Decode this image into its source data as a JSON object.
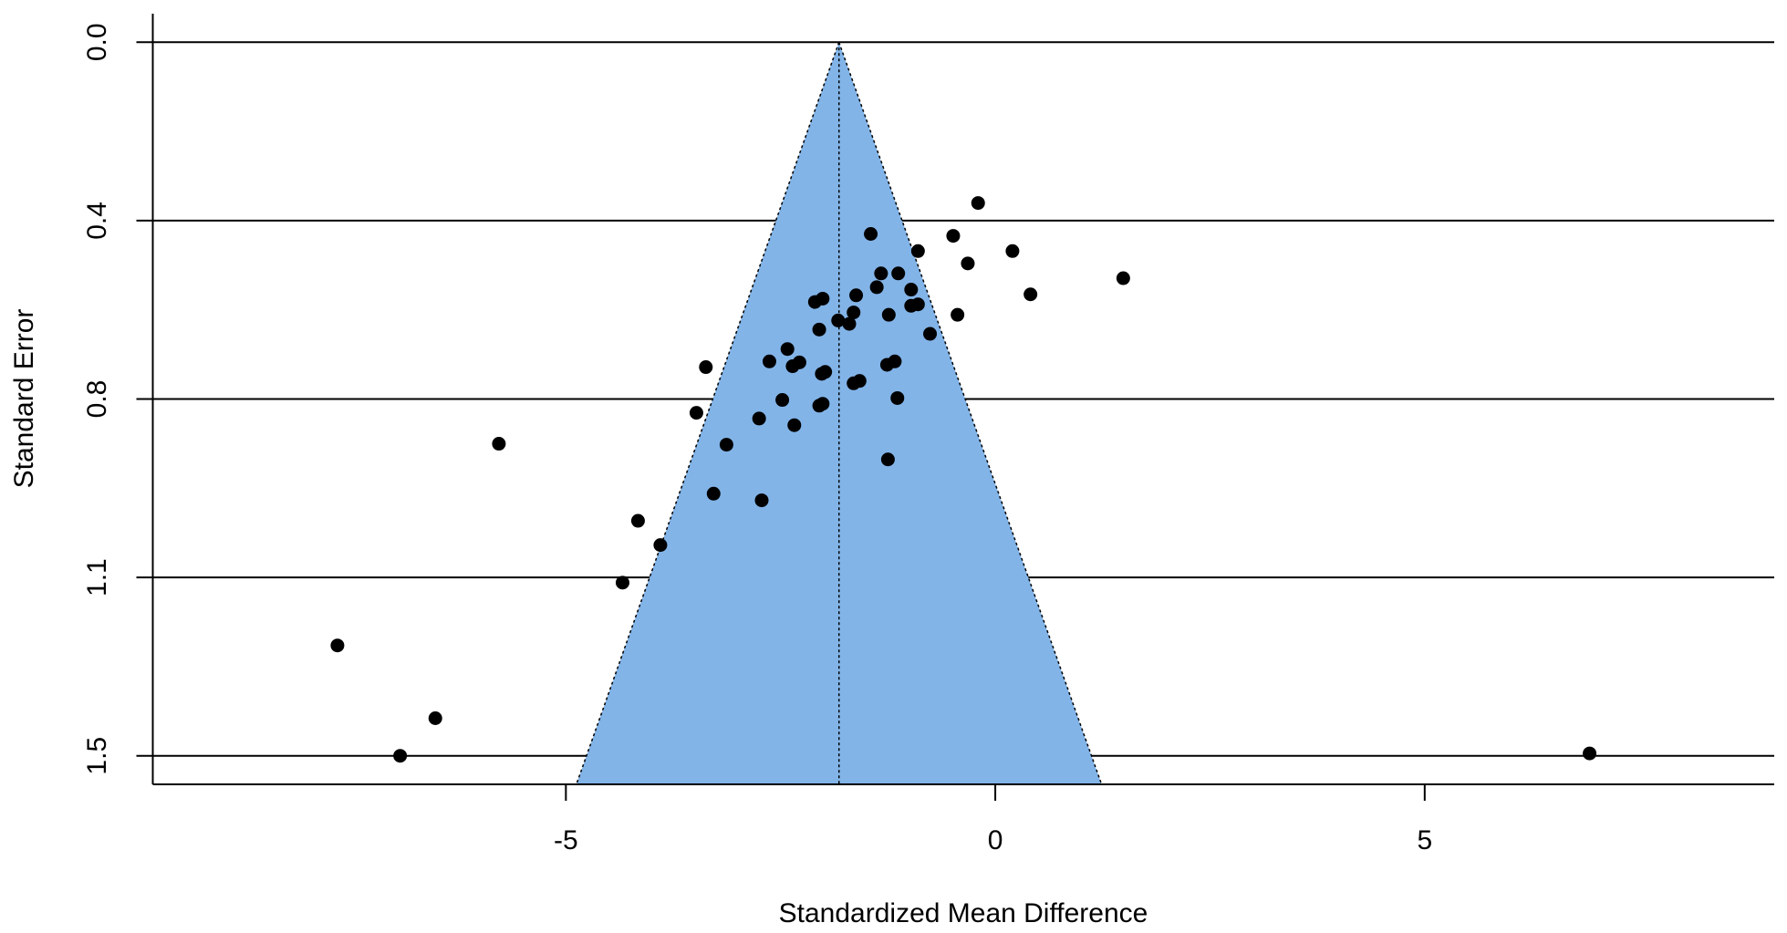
{
  "chart_data": {
    "type": "funnel",
    "x_label": "Standardized Mean Difference",
    "y_label": "Standard Error",
    "xlim": [
      -9.81,
      9.07
    ],
    "ylim": [
      1.56,
      -0.06
    ],
    "xticks": [
      -5,
      0,
      5
    ],
    "yticks": [
      {
        "value": 0,
        "label": "0.0"
      },
      {
        "value": 0.375,
        "label": "0.4"
      },
      {
        "value": 0.75,
        "label": "0.8"
      },
      {
        "value": 1.125,
        "label": "1.1"
      },
      {
        "value": 1.5,
        "label": "1.5"
      }
    ],
    "grid": true,
    "estimate": -1.82,
    "funnel_z": 1.96,
    "funnel_color": "#82b4e8",
    "point_color": "#000000",
    "x": [
      -0.2,
      -1.45,
      -0.49,
      -0.9,
      0.2,
      -0.32,
      -1.33,
      -1.13,
      1.49,
      -1.38,
      -0.98,
      0.41,
      -1.62,
      -2.1,
      -2.01,
      -0.98,
      -0.9,
      -1.65,
      -1.24,
      -0.44,
      -1.83,
      -1.7,
      -2.05,
      -0.76,
      -2.42,
      -2.63,
      -2.28,
      -2.36,
      -1.17,
      -1.26,
      -3.37,
      -1.98,
      -2.02,
      -1.58,
      -1.65,
      -2.48,
      -1.14,
      -2.01,
      -2.05,
      -3.48,
      -2.75,
      -2.34,
      -5.78,
      -3.13,
      -1.25,
      -3.28,
      -2.72,
      -4.16,
      -3.9,
      -4.34,
      -7.66,
      -6.52,
      -6.93,
      6.92
    ],
    "values": [
      0.338,
      0.403,
      0.407,
      0.439,
      0.439,
      0.465,
      0.486,
      0.486,
      0.496,
      0.515,
      0.52,
      0.53,
      0.532,
      0.546,
      0.539,
      0.554,
      0.551,
      0.568,
      0.573,
      0.573,
      0.585,
      0.592,
      0.604,
      0.613,
      0.645,
      0.671,
      0.673,
      0.681,
      0.671,
      0.678,
      0.683,
      0.693,
      0.697,
      0.712,
      0.717,
      0.752,
      0.748,
      0.76,
      0.764,
      0.779,
      0.791,
      0.805,
      0.844,
      0.846,
      0.877,
      0.949,
      0.963,
      1.006,
      1.057,
      1.136,
      1.268,
      1.421,
      1.5,
      1.495
    ]
  }
}
